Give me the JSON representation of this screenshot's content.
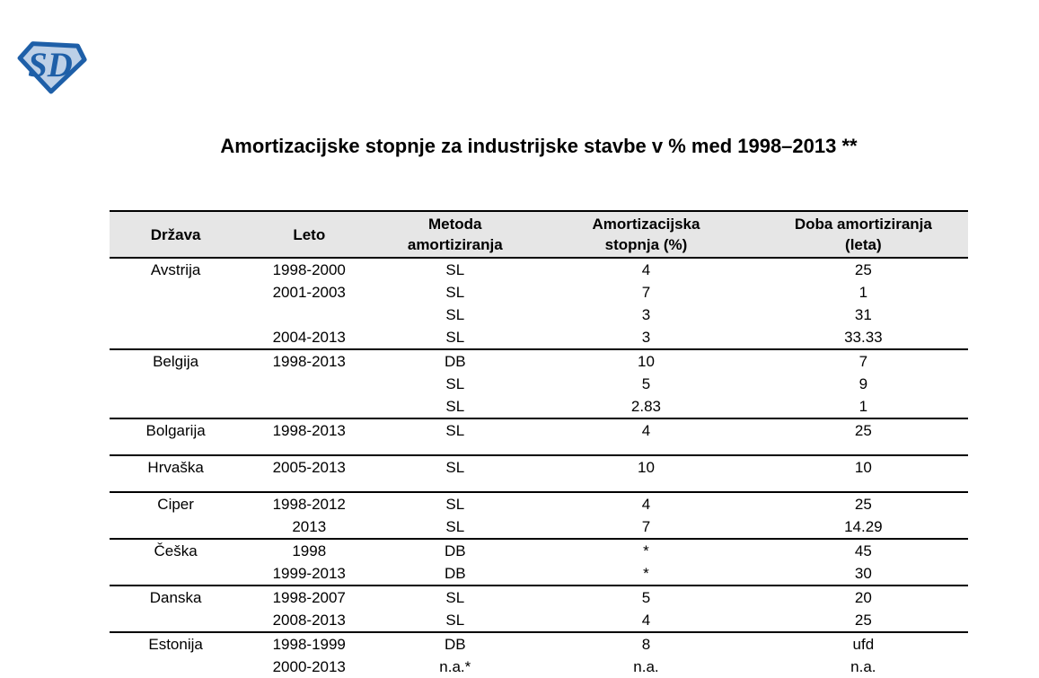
{
  "logo": {
    "letters": "SD",
    "outline_color": "#1e5fa8",
    "fill_color": "#bdd0e7",
    "letter_color": "#1e5fa8"
  },
  "title": "Amortizacijske stopnje za industrijske stavbe v % med 1998–2013 **",
  "table": {
    "header_bg": "#e6e6e6",
    "headers": [
      {
        "lines": [
          "Država"
        ]
      },
      {
        "lines": [
          "Leto"
        ]
      },
      {
        "lines": [
          "Metoda",
          "amortiziranja"
        ]
      },
      {
        "lines": [
          "Amortizacijska",
          "stopnja (%)"
        ]
      },
      {
        "lines": [
          "Doba amortiziranja",
          "(leta)"
        ]
      }
    ],
    "rows": [
      {
        "country": "Avstrija",
        "year": "1998-2000",
        "method": "SL",
        "rate": "4",
        "period": "25"
      },
      {
        "country": "",
        "year": "2001-2003",
        "method": "SL",
        "rate": "7",
        "period": "1"
      },
      {
        "country": "",
        "year": "",
        "method": "SL",
        "rate": "3",
        "period": "31"
      },
      {
        "country": "",
        "year": "2004-2013",
        "method": "SL",
        "rate": "3",
        "period": "33.33"
      },
      {
        "country": "Belgija",
        "year": "1998-2013",
        "method": "DB",
        "rate": "10",
        "period": "7",
        "sep": true
      },
      {
        "country": "",
        "year": "",
        "method": "SL",
        "rate": "5",
        "period": "9"
      },
      {
        "country": "",
        "year": "",
        "method": "SL",
        "rate": "2.83",
        "period": "1"
      },
      {
        "country": "Bolgarija",
        "year": "1998-2013",
        "method": "SL",
        "rate": "4",
        "period": "25",
        "sep": true
      },
      {
        "spacer": true
      },
      {
        "country": "Hrvaška",
        "year": "2005-2013",
        "method": "SL",
        "rate": "10",
        "period": "10",
        "sep": true
      },
      {
        "spacer": true
      },
      {
        "country": "Ciper",
        "year": "1998-2012",
        "method": "SL",
        "rate": "4",
        "period": "25",
        "sep": true
      },
      {
        "country": "",
        "year": "2013",
        "method": "SL",
        "rate": "7",
        "period": "14.29"
      },
      {
        "country": "Češka",
        "year": "1998",
        "method": "DB",
        "rate": "*",
        "period": "45",
        "sep": true
      },
      {
        "country": "",
        "year": "1999-2013",
        "method": "DB",
        "rate": "*",
        "period": "30"
      },
      {
        "country": "Danska",
        "year": "1998-2007",
        "method": "SL",
        "rate": "5",
        "period": "20",
        "sep": true
      },
      {
        "country": "",
        "year": "2008-2013",
        "method": "SL",
        "rate": "4",
        "period": "25"
      },
      {
        "country": "Estonija",
        "year": "1998-1999",
        "method": "DB",
        "rate": "8",
        "period": "ufd",
        "sep": true
      },
      {
        "country": "",
        "year": "2000-2013",
        "method": "n.a.*",
        "rate": "n.a.",
        "period": "n.a."
      }
    ]
  }
}
